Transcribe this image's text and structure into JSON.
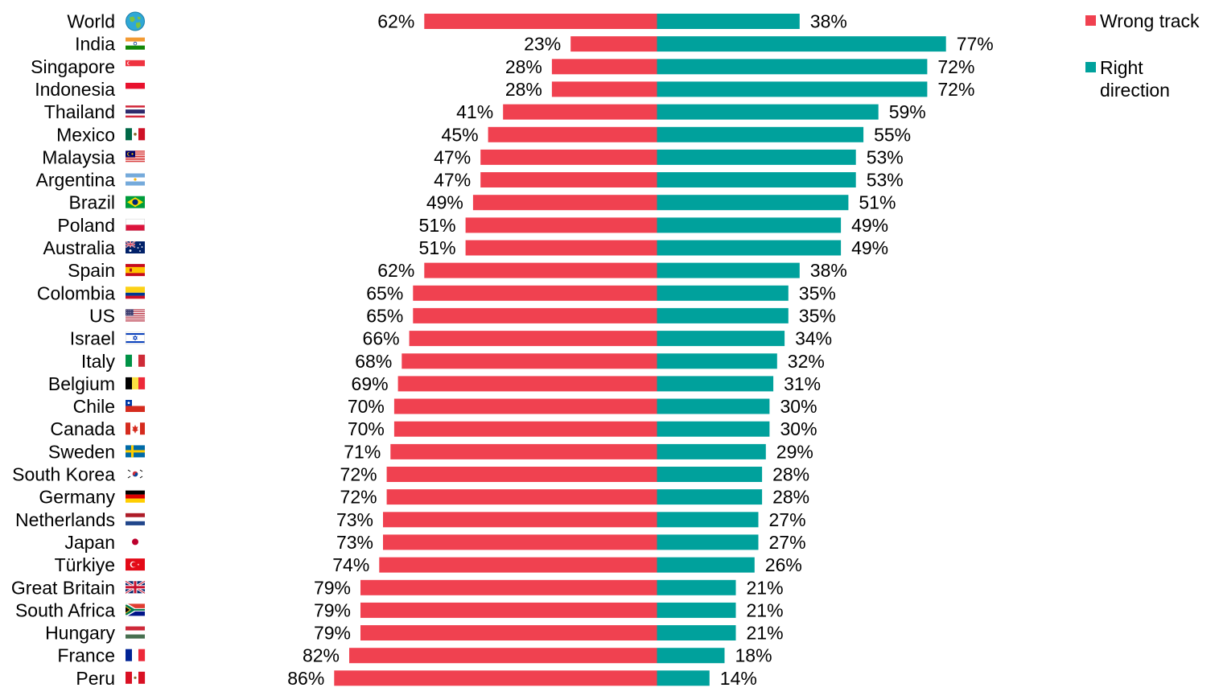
{
  "colors": {
    "wrong": "#F04150",
    "right": "#00A19C"
  },
  "legend": {
    "wrong_label": "Wrong track",
    "right_label_line1": "Right",
    "right_label_line2": "direction"
  },
  "chart_data": {
    "type": "bar",
    "orientation": "horizontal-diverging",
    "xlim": [
      -100,
      100
    ],
    "grid": false,
    "legend_position": "top-right",
    "value_format": "{v}%",
    "categories": [
      "World",
      "India",
      "Singapore",
      "Indonesia",
      "Thailand",
      "Mexico",
      "Malaysia",
      "Argentina",
      "Brazil",
      "Poland",
      "Australia",
      "Spain",
      "Colombia",
      "US",
      "Israel",
      "Italy",
      "Belgium",
      "Chile",
      "Canada",
      "Sweden",
      "South Korea",
      "Germany",
      "Netherlands",
      "Japan",
      "Türkiye",
      "Great Britain",
      "South Africa",
      "Hungary",
      "France",
      "Peru"
    ],
    "flags": [
      "globe",
      "india",
      "singapore",
      "indonesia",
      "thailand",
      "mexico",
      "malaysia",
      "argentina",
      "brazil",
      "poland",
      "australia",
      "spain",
      "colombia",
      "us",
      "israel",
      "italy",
      "belgium",
      "chile",
      "canada",
      "sweden",
      "south-korea",
      "germany",
      "netherlands",
      "japan",
      "turkiye",
      "great-britain",
      "south-africa",
      "hungary",
      "france",
      "peru"
    ],
    "series": [
      {
        "name": "Wrong track",
        "direction": "left",
        "values": [
          62,
          23,
          28,
          28,
          41,
          45,
          47,
          47,
          49,
          51,
          51,
          62,
          65,
          65,
          66,
          68,
          69,
          70,
          70,
          71,
          72,
          72,
          73,
          73,
          74,
          79,
          79,
          79,
          82,
          86
        ]
      },
      {
        "name": "Right direction",
        "direction": "right",
        "values": [
          38,
          77,
          72,
          72,
          59,
          55,
          53,
          53,
          51,
          49,
          49,
          38,
          35,
          35,
          34,
          32,
          31,
          30,
          30,
          29,
          28,
          28,
          27,
          27,
          26,
          21,
          21,
          21,
          18,
          14
        ]
      }
    ]
  }
}
